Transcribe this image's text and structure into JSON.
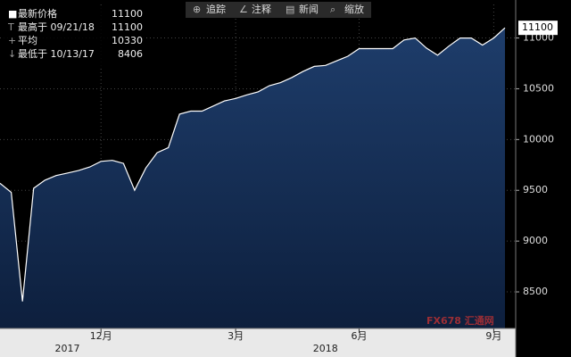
{
  "toolbar": [
    "追踪",
    "注释",
    "新闻",
    "缩放"
  ],
  "watermark": "FX678 汇通网",
  "chart_data": {
    "type": "area",
    "legend": [
      {
        "label": "最新价格",
        "value": 11100
      },
      {
        "label": "最高于 09/21/18",
        "value": 11100
      },
      {
        "label": "平均",
        "value": 10330
      },
      {
        "label": "最低于 10/13/17",
        "value": 8406
      }
    ],
    "last_label": 11100,
    "categories": [
      null,
      null,
      null,
      null,
      null,
      null,
      null,
      null,
      null,
      "12月",
      null,
      null,
      null,
      null,
      null,
      null,
      null,
      null,
      null,
      null,
      null,
      "3月",
      null,
      null,
      null,
      null,
      null,
      null,
      null,
      null,
      null,
      null,
      "6月",
      null,
      null,
      null,
      null,
      null,
      null,
      null,
      null,
      null,
      null,
      null,
      "9月",
      null
    ],
    "year_ticks": [
      {
        "value": 6,
        "label": "2017"
      },
      {
        "value": 29,
        "label": "2018"
      }
    ],
    "values": [
      9570,
      9480,
      8406,
      9520,
      9600,
      9645,
      9670,
      9695,
      9730,
      9785,
      9795,
      9765,
      9500,
      9720,
      9870,
      9920,
      10250,
      10280,
      10280,
      10330,
      10380,
      10405,
      10440,
      10470,
      10530,
      10560,
      10610,
      10670,
      10720,
      10730,
      10775,
      10820,
      10895,
      10895,
      10895,
      10895,
      10980,
      11000,
      10900,
      10830,
      10920,
      11000,
      11000,
      10930,
      11000,
      11100
    ],
    "color": "#ffffff",
    "fill": "#1b3763",
    "ylim": [
      8140,
      11330
    ],
    "yticks": [
      8500,
      9000,
      9500,
      10000,
      10500,
      11000
    ],
    "grid": true
  }
}
